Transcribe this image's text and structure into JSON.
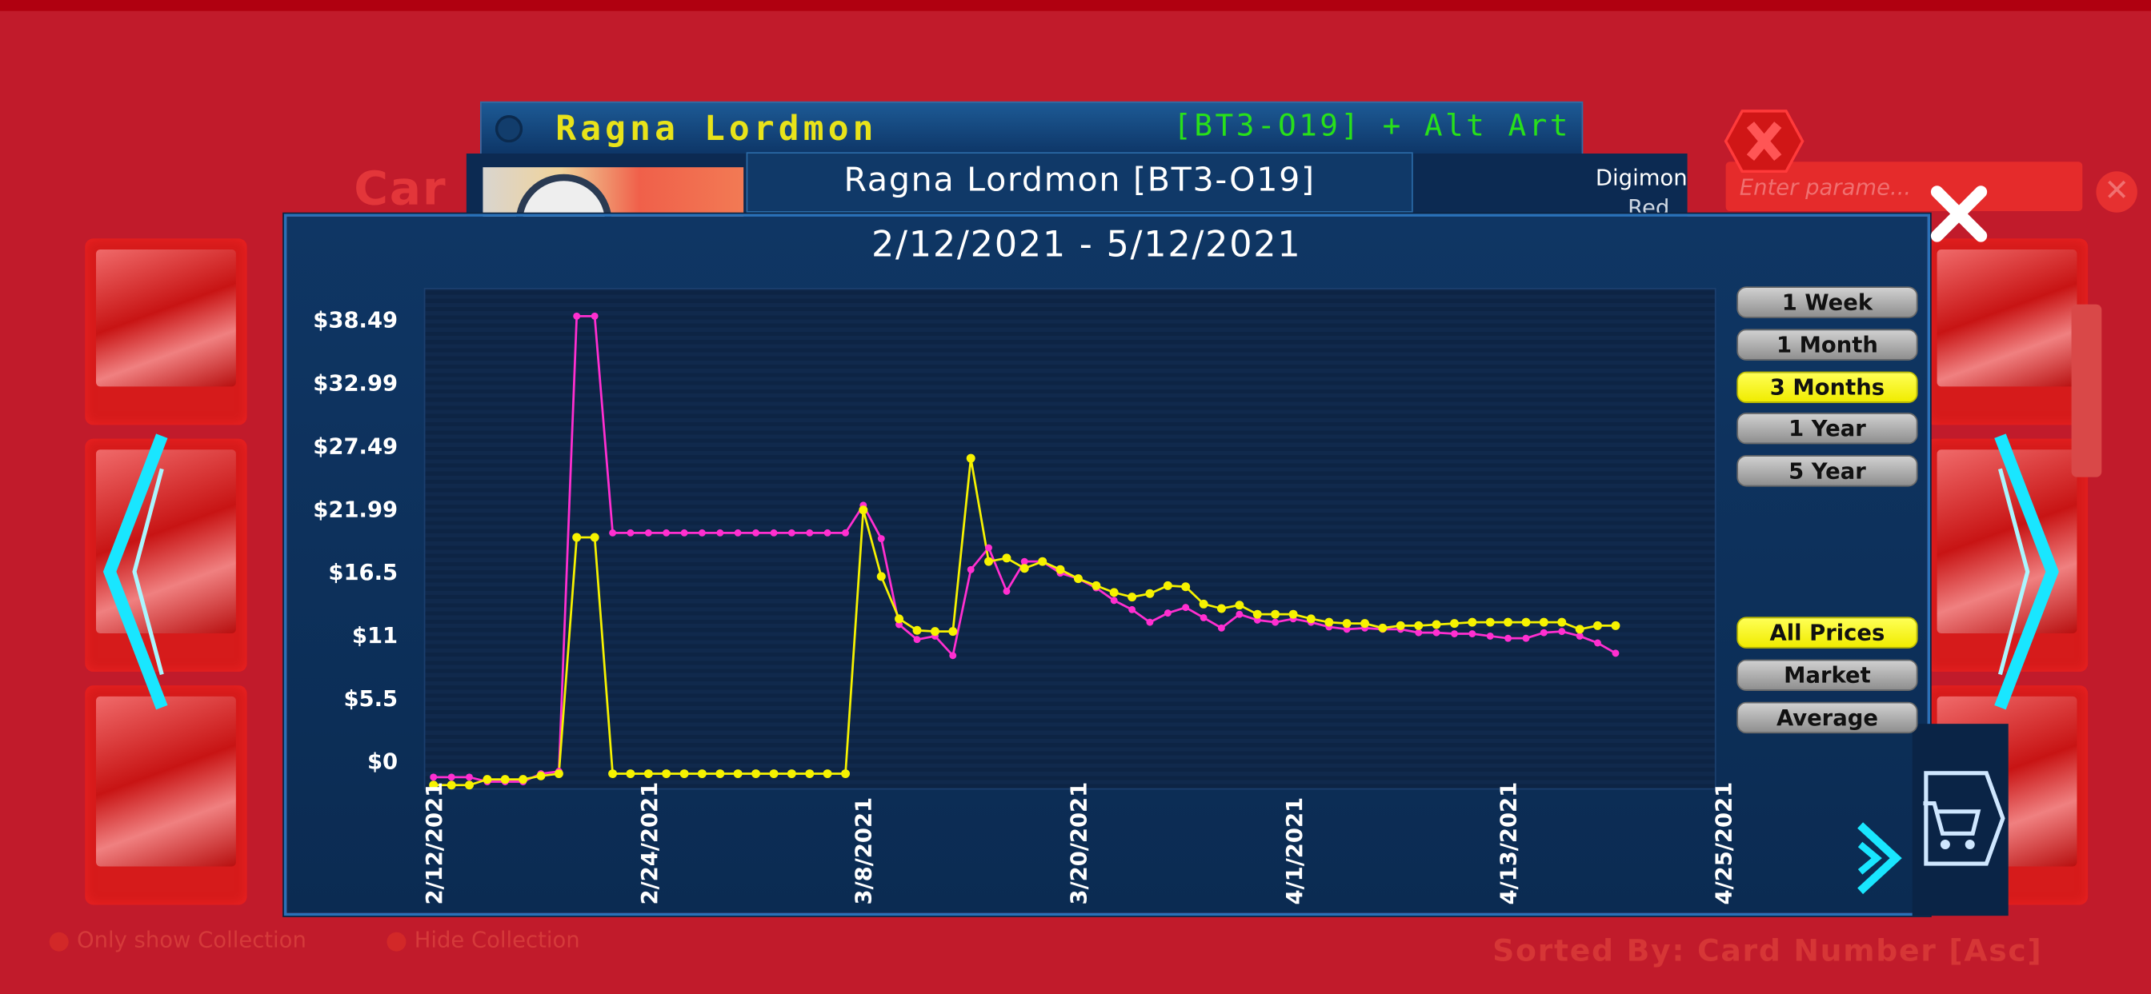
{
  "background": {
    "title_partial": "Car",
    "search_placeholder": "Enter parame...",
    "only_show_collection": "Only show Collection",
    "hide_collection": "Hide Collection",
    "sorted_by": "Sorted By: Card Number [Asc]"
  },
  "card": {
    "name": "Ragna Lordmon",
    "code": "[BT3-O19] + Alt Art",
    "subtitle": "Ragna Lordmon [BT3-O19]",
    "type": "Digimon",
    "color": "Red"
  },
  "range_buttons": [
    {
      "label": "1 Week",
      "selected": false
    },
    {
      "label": "1 Month",
      "selected": false
    },
    {
      "label": "3 Months",
      "selected": true
    },
    {
      "label": "1 Year",
      "selected": false
    },
    {
      "label": "5 Year",
      "selected": false
    }
  ],
  "price_buttons": [
    {
      "label": "All Prices",
      "selected": true
    },
    {
      "label": "Market",
      "selected": false
    },
    {
      "label": "Average",
      "selected": false
    }
  ],
  "colors": {
    "series_magenta": "#ff2fd0",
    "series_yellow": "#f6f200",
    "panel": "#0f3664",
    "accent_cyan": "#19e6ff"
  },
  "icons": [
    "close-icon",
    "next-arrow-icon",
    "cart-icon",
    "left-nav-icon",
    "right-nav-icon",
    "red-x-icon"
  ],
  "chart_data": {
    "type": "line",
    "title": "2/12/2021 - 5/12/2021",
    "y_tick_labels": [
      "$38.49",
      "$32.99",
      "$27.49",
      "$21.99",
      "$16.5",
      "$11",
      "$5.5",
      "$0"
    ],
    "y_ticks": [
      38.49,
      32.99,
      27.49,
      21.99,
      16.5,
      11,
      5.5,
      0
    ],
    "x_tick_labels": [
      "2/12/2021",
      "2/24/2021",
      "3/8/2021",
      "3/20/2021",
      "4/1/2021",
      "4/13/2021",
      "4/25/2021"
    ],
    "x_ticks": [
      "2021-02-12",
      "2021-02-24",
      "2021-03-08",
      "2021-03-20",
      "2021-04-01",
      "2021-04-13",
      "2021-04-25"
    ],
    "grid": false,
    "series": [
      {
        "color": "#ff2fd0",
        "points": [
          [
            "2021-02-12",
            -1.3
          ],
          [
            "2021-02-13",
            -1.3
          ],
          [
            "2021-02-14",
            -1.3
          ],
          [
            "2021-02-15",
            -1.7
          ],
          [
            "2021-02-16",
            -1.7
          ],
          [
            "2021-02-17",
            -1.7
          ],
          [
            "2021-02-18",
            -1.0
          ],
          [
            "2021-02-19",
            -0.8
          ],
          [
            "2021-02-20",
            38.9
          ],
          [
            "2021-02-21",
            38.9
          ],
          [
            "2021-02-22",
            20.0
          ],
          [
            "2021-02-23",
            20.0
          ],
          [
            "2021-02-24",
            20.0
          ],
          [
            "2021-02-25",
            20.0
          ],
          [
            "2021-02-26",
            20.0
          ],
          [
            "2021-02-27",
            20.0
          ],
          [
            "2021-02-28",
            20.0
          ],
          [
            "2021-03-01",
            20.0
          ],
          [
            "2021-03-02",
            20.0
          ],
          [
            "2021-03-03",
            20.0
          ],
          [
            "2021-03-04",
            20.0
          ],
          [
            "2021-03-05",
            20.0
          ],
          [
            "2021-03-06",
            20.0
          ],
          [
            "2021-03-07",
            20.0
          ],
          [
            "2021-03-08",
            22.4
          ],
          [
            "2021-03-09",
            19.5
          ],
          [
            "2021-03-10",
            12.0
          ],
          [
            "2021-03-11",
            10.7
          ],
          [
            "2021-03-12",
            11.0
          ],
          [
            "2021-03-13",
            9.3
          ],
          [
            "2021-03-14",
            16.8
          ],
          [
            "2021-03-15",
            18.7
          ],
          [
            "2021-03-16",
            14.9
          ],
          [
            "2021-03-17",
            17.5
          ],
          [
            "2021-03-18",
            17.5
          ],
          [
            "2021-03-19",
            16.5
          ],
          [
            "2021-03-20",
            16.0
          ],
          [
            "2021-03-21",
            15.2
          ],
          [
            "2021-03-22",
            14.1
          ],
          [
            "2021-03-23",
            13.3
          ],
          [
            "2021-03-24",
            12.2
          ],
          [
            "2021-03-25",
            13.0
          ],
          [
            "2021-03-26",
            13.5
          ],
          [
            "2021-03-27",
            12.6
          ],
          [
            "2021-03-28",
            11.7
          ],
          [
            "2021-03-29",
            12.9
          ],
          [
            "2021-03-30",
            12.4
          ],
          [
            "2021-03-31",
            12.2
          ],
          [
            "2021-04-01",
            12.5
          ],
          [
            "2021-04-02",
            12.2
          ],
          [
            "2021-04-03",
            11.8
          ],
          [
            "2021-04-04",
            11.6
          ],
          [
            "2021-04-05",
            11.7
          ],
          [
            "2021-04-06",
            11.6
          ],
          [
            "2021-04-07",
            11.6
          ],
          [
            "2021-04-08",
            11.3
          ],
          [
            "2021-04-09",
            11.3
          ],
          [
            "2021-04-10",
            11.2
          ],
          [
            "2021-04-11",
            11.2
          ],
          [
            "2021-04-12",
            11.0
          ],
          [
            "2021-04-13",
            10.8
          ],
          [
            "2021-04-14",
            10.8
          ],
          [
            "2021-04-15",
            11.3
          ],
          [
            "2021-04-16",
            11.4
          ],
          [
            "2021-04-17",
            11.0
          ],
          [
            "2021-04-18",
            10.4
          ],
          [
            "2021-04-19",
            9.5
          ]
        ]
      },
      {
        "color": "#f6f200",
        "points": [
          [
            "2021-02-12",
            -2.0
          ],
          [
            "2021-02-13",
            -2.0
          ],
          [
            "2021-02-14",
            -2.0
          ],
          [
            "2021-02-15",
            -1.5
          ],
          [
            "2021-02-16",
            -1.5
          ],
          [
            "2021-02-17",
            -1.5
          ],
          [
            "2021-02-18",
            -1.2
          ],
          [
            "2021-02-19",
            -1.0
          ],
          [
            "2021-02-20",
            19.6
          ],
          [
            "2021-02-21",
            19.6
          ],
          [
            "2021-02-22",
            -1.0
          ],
          [
            "2021-02-23",
            -1.0
          ],
          [
            "2021-02-24",
            -1.0
          ],
          [
            "2021-02-25",
            -1.0
          ],
          [
            "2021-02-26",
            -1.0
          ],
          [
            "2021-02-27",
            -1.0
          ],
          [
            "2021-02-28",
            -1.0
          ],
          [
            "2021-03-01",
            -1.0
          ],
          [
            "2021-03-02",
            -1.0
          ],
          [
            "2021-03-03",
            -1.0
          ],
          [
            "2021-03-04",
            -1.0
          ],
          [
            "2021-03-05",
            -1.0
          ],
          [
            "2021-03-06",
            -1.0
          ],
          [
            "2021-03-07",
            -1.0
          ],
          [
            "2021-03-08",
            22.0
          ],
          [
            "2021-03-09",
            16.2
          ],
          [
            "2021-03-10",
            12.5
          ],
          [
            "2021-03-11",
            11.5
          ],
          [
            "2021-03-12",
            11.4
          ],
          [
            "2021-03-13",
            11.4
          ],
          [
            "2021-03-14",
            26.5
          ],
          [
            "2021-03-15",
            17.5
          ],
          [
            "2021-03-16",
            17.8
          ],
          [
            "2021-03-17",
            16.9
          ],
          [
            "2021-03-18",
            17.5
          ],
          [
            "2021-03-19",
            16.8
          ],
          [
            "2021-03-20",
            16.0
          ],
          [
            "2021-03-21",
            15.4
          ],
          [
            "2021-03-22",
            14.8
          ],
          [
            "2021-03-23",
            14.4
          ],
          [
            "2021-03-24",
            14.7
          ],
          [
            "2021-03-25",
            15.4
          ],
          [
            "2021-03-26",
            15.3
          ],
          [
            "2021-03-27",
            13.8
          ],
          [
            "2021-03-28",
            13.4
          ],
          [
            "2021-03-29",
            13.7
          ],
          [
            "2021-03-30",
            12.9
          ],
          [
            "2021-03-31",
            12.9
          ],
          [
            "2021-04-01",
            12.9
          ],
          [
            "2021-04-02",
            12.5
          ],
          [
            "2021-04-03",
            12.2
          ],
          [
            "2021-04-04",
            12.1
          ],
          [
            "2021-04-05",
            12.1
          ],
          [
            "2021-04-06",
            11.7
          ],
          [
            "2021-04-07",
            11.9
          ],
          [
            "2021-04-08",
            11.9
          ],
          [
            "2021-04-09",
            12.0
          ],
          [
            "2021-04-10",
            12.1
          ],
          [
            "2021-04-11",
            12.2
          ],
          [
            "2021-04-12",
            12.2
          ],
          [
            "2021-04-13",
            12.2
          ],
          [
            "2021-04-14",
            12.2
          ],
          [
            "2021-04-15",
            12.2
          ],
          [
            "2021-04-16",
            12.2
          ],
          [
            "2021-04-17",
            11.6
          ],
          [
            "2021-04-18",
            11.9
          ],
          [
            "2021-04-19",
            11.9
          ]
        ]
      }
    ]
  }
}
